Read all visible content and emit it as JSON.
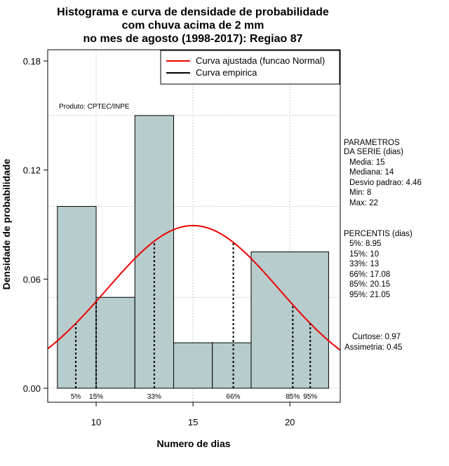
{
  "chart_data": {
    "type": "bar",
    "title_lines": [
      "Histograma e curva de densidade de probabilidade",
      "com chuva acima de 2 mm",
      "no mes de agosto (1998-2017): Regiao 87"
    ],
    "xlabel": "Numero de dias",
    "ylabel": "Densidade de probabilidade",
    "xlim": [
      7.5,
      22.6
    ],
    "ylim": [
      0,
      0.18
    ],
    "x_ticks": [
      10,
      15,
      20
    ],
    "y_ticks": [
      {
        "value": 0.0,
        "label": "0.00"
      },
      {
        "value": 0.06,
        "label": "0.06"
      },
      {
        "value": 0.12,
        "label": "0.12"
      },
      {
        "value": 0.18,
        "label": "0.18"
      }
    ],
    "grid": true,
    "bins": [
      {
        "from": 8,
        "to": 10,
        "density": 0.1
      },
      {
        "from": 10,
        "to": 12,
        "density": 0.05
      },
      {
        "from": 12,
        "to": 14,
        "density": 0.15
      },
      {
        "from": 14,
        "to": 16,
        "density": 0.025
      },
      {
        "from": 16,
        "to": 18,
        "density": 0.025
      },
      {
        "from": 18,
        "to": 22,
        "density": 0.075
      }
    ],
    "bar_color": "#b7cccd",
    "series": [
      {
        "name": "Curva ajustada (funcao Normal)",
        "type": "normal",
        "mean": 15,
        "sd": 4.46,
        "color": "#ee0000"
      },
      {
        "name": "Curva empirica",
        "color": "#000000"
      }
    ],
    "legend_position": "top-right",
    "percentile_markers": [
      {
        "label": "5%",
        "value": 8.95
      },
      {
        "label": "15%",
        "value": 10
      },
      {
        "label": "33%",
        "value": 13
      },
      {
        "label": "66%",
        "value": 17.08
      },
      {
        "label": "85%",
        "value": 20.15
      },
      {
        "label": "95%",
        "value": 21.05
      }
    ],
    "annotation": "Produto: CPTEC/INPE",
    "parametros": {
      "heading": [
        "PARAMETROS",
        "DA SERIE (dias)"
      ],
      "lines": [
        "Media: 15",
        "Mediana: 14",
        "Desvio padrao: 4.46",
        "Min: 8",
        "Max: 22"
      ]
    },
    "percentis": {
      "heading": "PERCENTIS (dias)",
      "lines": [
        "5%: 8.95",
        "15%: 10",
        "33%: 13",
        "66%: 17.08",
        "85%: 20.15",
        "95%: 21.05"
      ]
    },
    "extra": [
      "Curtose: 0.97",
      "Assimetria: 0.45"
    ]
  }
}
